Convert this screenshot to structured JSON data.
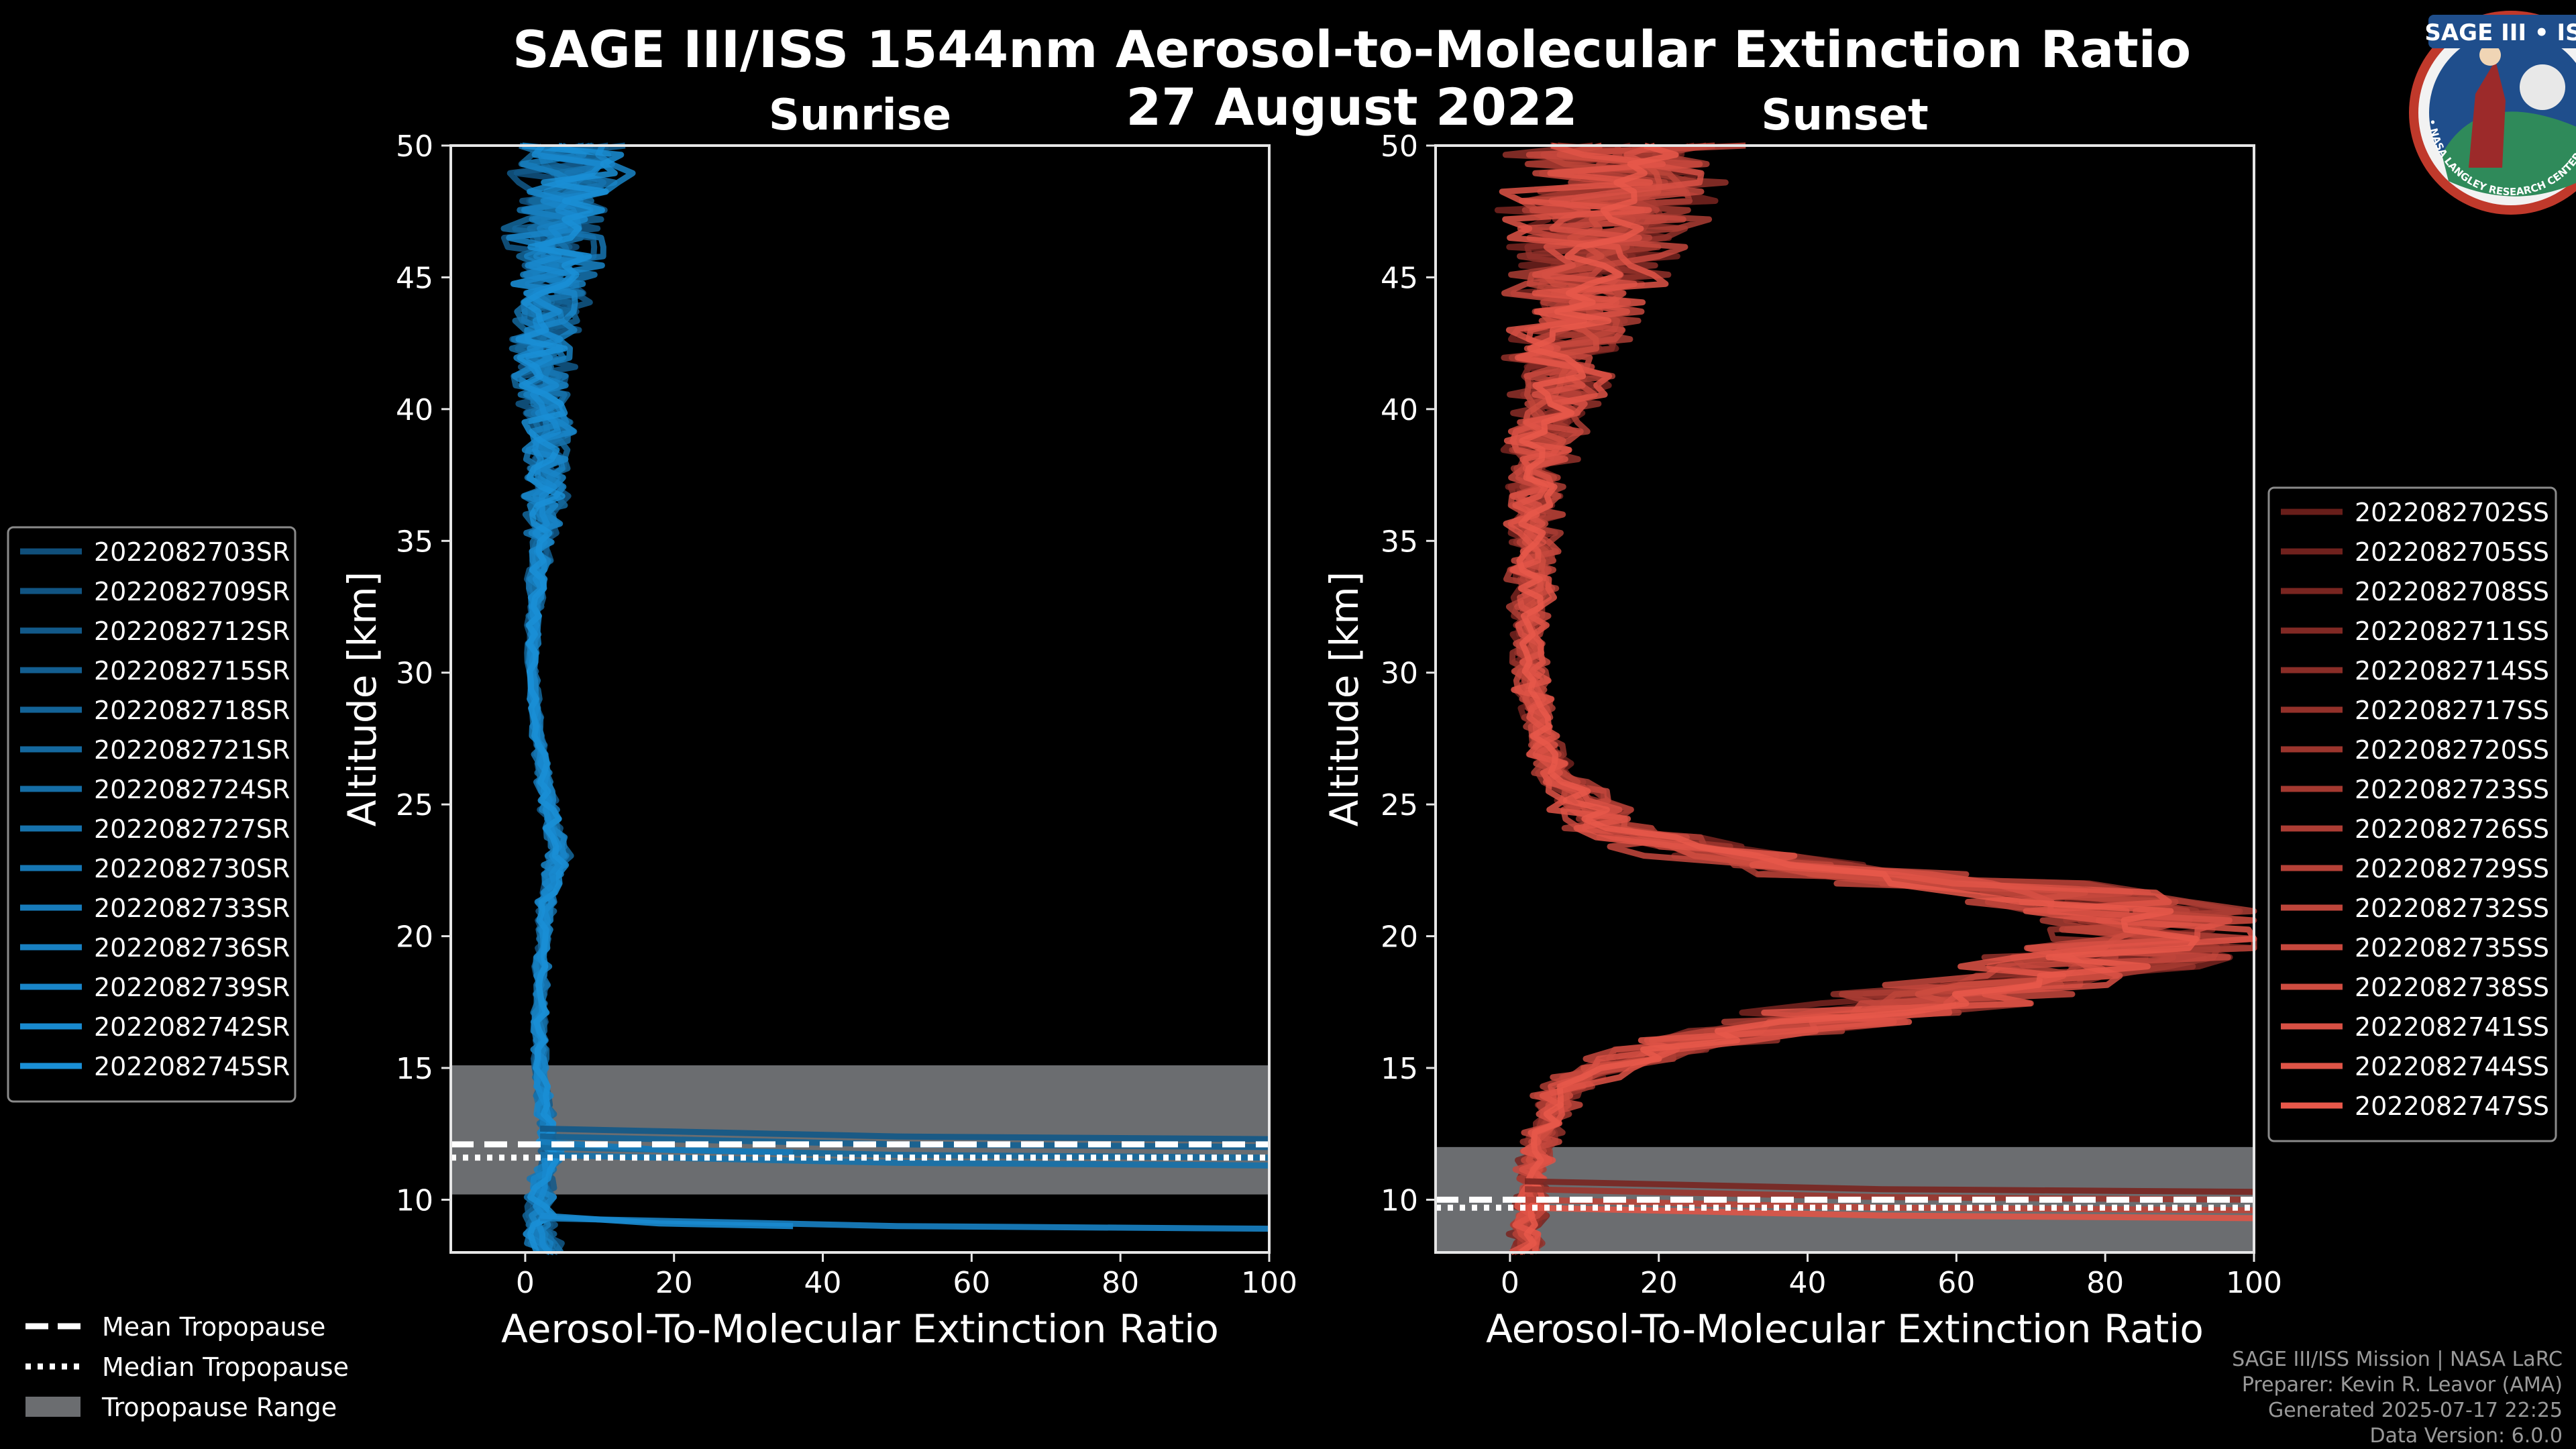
{
  "title": "SAGE III/ISS 1544nm Aerosol-to-Molecular Extinction Ratio",
  "date": "27 August 2022",
  "logo": {
    "text": "SAGE III • ISS",
    "ring_text": "BALL • NASA LANGLEY RESEARCH CENTER • TAS • ESA"
  },
  "footer": {
    "line1": "SAGE III/ISS Mission | NASA LaRC",
    "line2": "Preparer: Kevin R. Leavor (AMA)",
    "line3": "Generated 2025-07-17 22:25",
    "line4": "Data Version: 6.0.0"
  },
  "tropopause_legend": {
    "mean": "Mean Tropopause",
    "median": "Median Tropopause",
    "range": "Tropopause Range"
  },
  "colors": {
    "background": "#000000",
    "sunrise": "#1a8fd6",
    "sunset": "#e8584a",
    "tropopause_range": "#6b6d70"
  },
  "chart_data": [
    {
      "type": "line",
      "title": "Sunrise",
      "xlabel": "Aerosol-To-Molecular Extinction Ratio",
      "ylabel": "Altitude [km]",
      "xlim": [
        -10,
        100
      ],
      "ylim": [
        8,
        50
      ],
      "xticks": [
        0,
        20,
        40,
        60,
        80,
        100
      ],
      "yticks": [
        10,
        15,
        20,
        25,
        30,
        35,
        40,
        45,
        50
      ],
      "tropopause": {
        "range": [
          10.2,
          15.1
        ],
        "mean": 12.1,
        "median": 11.6
      },
      "series": [
        {
          "name": "2022082703SR"
        },
        {
          "name": "2022082709SR"
        },
        {
          "name": "2022082712SR"
        },
        {
          "name": "2022082715SR"
        },
        {
          "name": "2022082718SR"
        },
        {
          "name": "2022082721SR"
        },
        {
          "name": "2022082724SR"
        },
        {
          "name": "2022082727SR"
        },
        {
          "name": "2022082730SR"
        },
        {
          "name": "2022082733SR"
        },
        {
          "name": "2022082736SR"
        },
        {
          "name": "2022082739SR"
        },
        {
          "name": "2022082742SR"
        },
        {
          "name": "2022082745SR"
        }
      ],
      "profile": {
        "altitudes": [
          8,
          8.8,
          9.5,
          10,
          10.8,
          11.2,
          11.8,
          12.5,
          13.5,
          15,
          17,
          19,
          20,
          21,
          22,
          23,
          24,
          25,
          26,
          27,
          28,
          29,
          30,
          31,
          32,
          33,
          34,
          35,
          36,
          37,
          38,
          39,
          40,
          41,
          42,
          43,
          44,
          45,
          46,
          47,
          48,
          49,
          50
        ],
        "ratio": [
          3,
          2,
          2,
          2,
          2.5,
          3,
          3,
          3,
          2.5,
          2,
          2,
          2.2,
          2.4,
          2.8,
          3.5,
          4.5,
          4,
          3,
          2.5,
          2,
          1.5,
          1.2,
          1,
          1,
          1.2,
          1.5,
          1.8,
          2,
          2.5,
          3,
          3,
          3,
          2.8,
          2.5,
          2.5,
          2.8,
          3,
          3.5,
          4,
          4.5,
          5,
          5.5,
          6
        ],
        "spread": [
          2,
          2,
          2,
          1.5,
          1.5,
          1.5,
          1.5,
          1,
          1,
          0.8,
          0.8,
          0.8,
          0.9,
          1,
          1.2,
          1.5,
          1.2,
          1,
          0.8,
          0.7,
          0.6,
          0.6,
          0.6,
          0.7,
          0.8,
          1,
          1.2,
          1.5,
          2,
          2.5,
          2.5,
          3,
          3,
          3,
          3.5,
          4,
          4.5,
          5,
          5.5,
          6,
          6.5,
          7,
          8
        ]
      },
      "spikes": [
        [
          12.3,
          100
        ],
        [
          12.0,
          100
        ],
        [
          11.6,
          100
        ],
        [
          11.3,
          100
        ],
        [
          11.8,
          36
        ],
        [
          8.9,
          100
        ],
        [
          9.0,
          36
        ]
      ]
    },
    {
      "type": "line",
      "title": "Sunset",
      "xlabel": "Aerosol-To-Molecular Extinction Ratio",
      "ylabel": "Altitude [km]",
      "xlim": [
        -10,
        100
      ],
      "ylim": [
        8,
        50
      ],
      "xticks": [
        0,
        20,
        40,
        60,
        80,
        100
      ],
      "yticks": [
        10,
        15,
        20,
        25,
        30,
        35,
        40,
        45,
        50
      ],
      "tropopause": {
        "range": [
          8,
          12
        ],
        "mean": 10.0,
        "median": 9.7
      },
      "series": [
        {
          "name": "2022082702SS"
        },
        {
          "name": "2022082705SS"
        },
        {
          "name": "2022082708SS"
        },
        {
          "name": "2022082711SS"
        },
        {
          "name": "2022082714SS"
        },
        {
          "name": "2022082717SS"
        },
        {
          "name": "2022082720SS"
        },
        {
          "name": "2022082723SS"
        },
        {
          "name": "2022082726SS"
        },
        {
          "name": "2022082729SS"
        },
        {
          "name": "2022082732SS"
        },
        {
          "name": "2022082735SS"
        },
        {
          "name": "2022082738SS"
        },
        {
          "name": "2022082741SS"
        },
        {
          "name": "2022082744SS"
        },
        {
          "name": "2022082747SS"
        }
      ],
      "profile": {
        "altitudes": [
          8,
          9,
          10,
          11,
          12,
          13,
          14,
          15,
          16,
          17,
          18,
          19,
          20,
          21,
          22,
          23,
          24,
          25,
          26,
          27,
          28,
          29,
          30,
          31,
          32,
          33,
          34,
          35,
          36,
          37,
          38,
          39,
          40,
          41,
          42,
          43,
          44,
          45,
          46,
          47,
          48,
          49,
          50
        ],
        "ratio": [
          2,
          2,
          3,
          3,
          4,
          5,
          7,
          12,
          25,
          45,
          65,
          80,
          88,
          85,
          60,
          30,
          15,
          10,
          7,
          5,
          4,
          3,
          2.5,
          2.5,
          2.5,
          3,
          3,
          3,
          3.5,
          3.5,
          4,
          4.5,
          5,
          6,
          7,
          8,
          9,
          10,
          11,
          12,
          13,
          14,
          15
        ],
        "spread": [
          2,
          2,
          2,
          2,
          2,
          2.5,
          3,
          4,
          8,
          12,
          14,
          15,
          15,
          14,
          14,
          10,
          6,
          4,
          3,
          2,
          2,
          2,
          2,
          2,
          2,
          2.5,
          3,
          3,
          3,
          3.5,
          4,
          4.5,
          5,
          6,
          7,
          7,
          8,
          9,
          10,
          11,
          12,
          13,
          14
        ]
      },
      "spikes": [
        [
          10.3,
          100
        ],
        [
          10.0,
          100
        ],
        [
          9.6,
          100
        ],
        [
          9.3,
          100
        ]
      ]
    }
  ]
}
